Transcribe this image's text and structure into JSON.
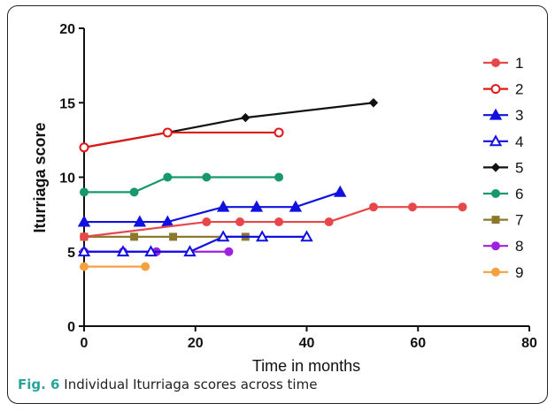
{
  "chart_data": {
    "type": "line",
    "title": "",
    "xlabel": "Time in months",
    "ylabel": "Iturriaga score",
    "xlim": [
      0,
      80
    ],
    "ylim": [
      0,
      20
    ],
    "xticks": [
      0,
      20,
      40,
      60,
      80
    ],
    "yticks": [
      0,
      5,
      10,
      15,
      20
    ],
    "grid": false,
    "legend_position": "right",
    "series": [
      {
        "name": "1",
        "color": "#e8474a",
        "marker": "filled-circle",
        "points": [
          [
            0,
            6
          ],
          [
            22,
            7
          ],
          [
            28,
            7
          ],
          [
            35,
            7
          ],
          [
            44,
            7
          ],
          [
            52,
            8
          ],
          [
            59,
            8
          ],
          [
            68,
            8
          ]
        ]
      },
      {
        "name": "2",
        "color": "#e01818",
        "marker": "open-circle",
        "points": [
          [
            0,
            12
          ],
          [
            15,
            13
          ],
          [
            35,
            13
          ]
        ]
      },
      {
        "name": "3",
        "color": "#1010e0",
        "marker": "filled-triangle",
        "points": [
          [
            0,
            7
          ],
          [
            10,
            7
          ],
          [
            15,
            7
          ],
          [
            25,
            8
          ],
          [
            31,
            8
          ],
          [
            38,
            8
          ],
          [
            46,
            9
          ]
        ]
      },
      {
        "name": "4",
        "color": "#1010e0",
        "marker": "open-triangle",
        "points": [
          [
            0,
            5
          ],
          [
            7,
            5
          ],
          [
            12,
            5
          ],
          [
            19,
            5
          ],
          [
            25,
            6
          ],
          [
            32,
            6
          ],
          [
            40,
            6
          ]
        ]
      },
      {
        "name": "5",
        "color": "#111111",
        "marker": "diamond",
        "points": [
          [
            0,
            12
          ],
          [
            15,
            13
          ],
          [
            29,
            14
          ],
          [
            52,
            15
          ]
        ]
      },
      {
        "name": "6",
        "color": "#17996a",
        "marker": "filled-circle",
        "points": [
          [
            0,
            9
          ],
          [
            9,
            9
          ],
          [
            15,
            10
          ],
          [
            22,
            10
          ],
          [
            35,
            10
          ]
        ]
      },
      {
        "name": "7",
        "color": "#8b7a2e",
        "marker": "square",
        "points": [
          [
            0,
            6
          ],
          [
            9,
            6
          ],
          [
            16,
            6
          ],
          [
            29,
            6
          ]
        ]
      },
      {
        "name": "8",
        "color": "#a020e0",
        "marker": "filled-circle",
        "points": [
          [
            0,
            5
          ],
          [
            7,
            5
          ],
          [
            13,
            5
          ],
          [
            26,
            5
          ]
        ]
      },
      {
        "name": "9",
        "color": "#f5a040",
        "marker": "filled-circle",
        "points": [
          [
            0,
            4
          ],
          [
            11,
            4
          ]
        ]
      }
    ]
  },
  "caption": {
    "label": "Fig. 6",
    "text": "Individual Iturriaga scores across time"
  }
}
